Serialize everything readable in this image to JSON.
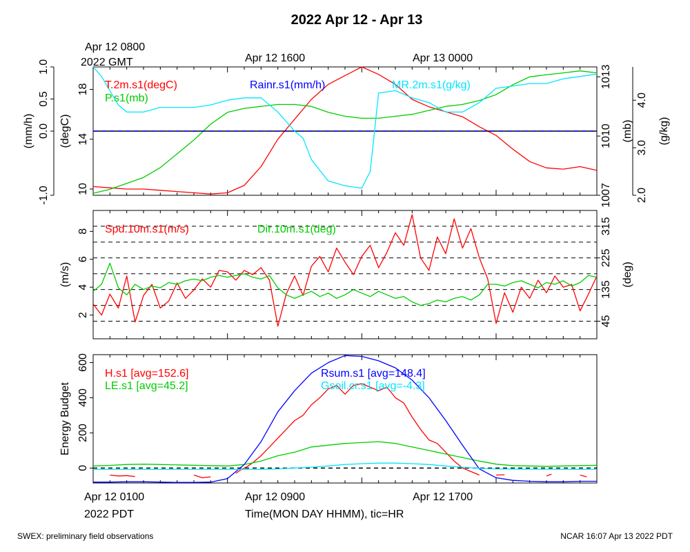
{
  "title": "2022 Apr 12 - Apr 13",
  "top_time_labels": [
    "Apr 12 0800",
    "2022 GMT",
    "Apr 12 1600",
    "Apr 13 0000"
  ],
  "bottom_time_labels": [
    "Apr 12 0100",
    "2022 PDT",
    "Apr 12 0900",
    "Apr 12 1700"
  ],
  "x_axis_label": "Time(MON DAY HHMM), tic=HR",
  "footer_left": "SWEX: preliminary field observations",
  "footer_right": "NCAR 16:07 Apr 13 2022 PDT",
  "colors": {
    "red": "#ff0000",
    "green": "#00cc00",
    "blue": "#0000ff",
    "cyan": "#00e5ff",
    "black": "#000000"
  },
  "chart_data": [
    {
      "type": "line",
      "panel": "meteorology",
      "x_unit": "hour since Apr 12 0100 PDT",
      "x_range": [
        0,
        30
      ],
      "left_axes": [
        {
          "label": "(mm/h)",
          "range": [
            -1.0,
            1.0
          ],
          "ticks": [
            "-1.0",
            "0.0",
            "0.5",
            "1.0"
          ],
          "tick_values": [
            -1.0,
            0.0,
            0.5,
            1.0
          ]
        },
        {
          "label": "(degC)",
          "range": [
            9.5,
            19.8
          ],
          "ticks": [
            "10",
            "14",
            "18"
          ],
          "tick_values": [
            10,
            14,
            18
          ]
        }
      ],
      "right_axes": [
        {
          "label": "(mb)",
          "range": [
            1007,
            1013.5
          ],
          "ticks": [
            "1007",
            "1010",
            "1013"
          ],
          "tick_values": [
            1007,
            1010,
            1013
          ]
        },
        {
          "label": "(g/kg)",
          "range": [
            2.0,
            4.7
          ],
          "ticks": [
            "2.0",
            "3.0",
            "4.0"
          ],
          "tick_values": [
            2.0,
            3.0,
            4.0
          ]
        }
      ],
      "legend": [
        "T.2m.s1(degC)",
        "P.s1(mb)",
        "Rainr.s1(mm/h)",
        "MR.2m.s1(g/kg)"
      ],
      "series": [
        {
          "name": "T.2m.s1(degC)",
          "color": "red",
          "axis": "degC",
          "x": [
            0,
            1,
            2,
            3,
            4,
            5,
            6,
            7,
            8,
            9,
            10,
            11,
            12,
            13,
            14,
            15,
            16,
            17,
            18,
            19,
            20,
            21,
            22,
            23,
            24,
            25,
            26,
            27,
            28,
            29,
            30
          ],
          "values": [
            10.2,
            10.1,
            10.0,
            10.0,
            9.9,
            9.8,
            9.7,
            9.6,
            9.7,
            10.3,
            11.8,
            14.0,
            15.6,
            17.2,
            18.4,
            19.1,
            19.8,
            19.2,
            18.4,
            17.2,
            16.6,
            16.2,
            15.8,
            15.0,
            14.3,
            13.2,
            12.2,
            11.7,
            11.6,
            11.8,
            11.5
          ]
        },
        {
          "name": "P.s1(mb)",
          "color": "green",
          "axis": "mb",
          "x": [
            0,
            1,
            2,
            3,
            4,
            5,
            6,
            7,
            8,
            9,
            10,
            11,
            12,
            13,
            14,
            15,
            16,
            17,
            18,
            19,
            20,
            21,
            22,
            23,
            24,
            25,
            26,
            27,
            28,
            29,
            30
          ],
          "values": [
            1007.1,
            1007.3,
            1007.6,
            1007.9,
            1008.4,
            1009.1,
            1009.8,
            1010.6,
            1011.2,
            1011.4,
            1011.5,
            1011.6,
            1011.6,
            1011.5,
            1011.2,
            1011.0,
            1010.9,
            1010.9,
            1011.0,
            1011.1,
            1011.3,
            1011.5,
            1011.6,
            1011.8,
            1012.1,
            1012.6,
            1013.0,
            1013.1,
            1013.2,
            1013.3,
            1013.2
          ]
        },
        {
          "name": "Rainr.s1(mm/h)",
          "color": "blue",
          "axis": "mm/h",
          "x": [
            0,
            30
          ],
          "values": [
            0.0,
            0.0
          ]
        },
        {
          "name": "MR.2m.s1(g/kg)",
          "color": "cyan",
          "axis": "g/kg",
          "x": [
            0,
            0.5,
            1,
            1.5,
            2,
            3,
            4,
            5,
            6,
            7,
            8,
            9,
            10,
            11,
            12,
            12.5,
            13,
            14,
            15,
            16,
            16.5,
            17,
            18,
            19,
            20,
            21,
            22,
            23,
            24,
            25,
            26,
            27,
            28,
            29,
            30
          ],
          "values": [
            4.7,
            4.5,
            4.2,
            3.9,
            3.75,
            3.75,
            3.85,
            3.85,
            3.85,
            3.9,
            4.0,
            4.05,
            4.05,
            3.75,
            3.35,
            3.2,
            2.75,
            2.3,
            2.2,
            2.15,
            2.5,
            4.15,
            4.2,
            4.05,
            3.95,
            3.75,
            3.75,
            3.95,
            4.25,
            4.3,
            4.35,
            4.35,
            4.45,
            4.5,
            4.55
          ]
        }
      ]
    },
    {
      "type": "line",
      "panel": "wind",
      "x_unit": "hour since Apr 12 0100 PDT",
      "x_range": [
        0,
        30
      ],
      "left_axis": {
        "label": "(m/s)",
        "range": [
          0.3,
          9.5
        ],
        "ticks": [
          "2",
          "4",
          "6",
          "8"
        ],
        "tick_values": [
          2,
          4,
          6,
          8
        ]
      },
      "right_axis": {
        "label": "(deg)",
        "range": [
          -5,
          360
        ],
        "ticks": [
          "45",
          "135",
          "225",
          "315"
        ],
        "tick_values": [
          45,
          135,
          225,
          315
        ]
      },
      "reference_lines_deg": [
        45,
        90,
        135,
        180,
        225,
        270,
        315,
        360
      ],
      "legend": [
        "Spd.10m.s1(m/s)",
        "Dir.10m.s1(deg)"
      ],
      "series": [
        {
          "name": "Spd.10m.s1(m/s)",
          "color": "red",
          "axis": "m/s",
          "x": [
            0,
            0.5,
            1,
            1.5,
            2,
            2.5,
            3,
            3.5,
            4,
            4.5,
            5,
            5.5,
            6,
            6.5,
            7,
            7.5,
            8,
            8.5,
            9,
            9.5,
            10,
            10.5,
            11,
            11.5,
            12,
            12.5,
            13,
            13.5,
            14,
            14.5,
            15,
            15.5,
            16,
            16.5,
            17,
            17.5,
            18,
            18.5,
            19,
            19.5,
            20,
            20.5,
            21,
            21.5,
            22,
            22.5,
            23,
            23.5,
            24,
            24.5,
            25,
            25.5,
            26,
            26.5,
            27,
            27.5,
            28,
            28.5,
            29,
            29.5,
            30
          ],
          "values": [
            2.8,
            2.0,
            3.5,
            2.5,
            4.8,
            1.5,
            3.4,
            4.2,
            2.5,
            3.0,
            4.3,
            3.2,
            3.8,
            4.6,
            4.0,
            5.2,
            5.1,
            4.5,
            5.2,
            4.9,
            5.4,
            4.5,
            1.2,
            3.5,
            4.8,
            3.4,
            5.5,
            6.2,
            5.1,
            6.8,
            5.8,
            4.9,
            6.2,
            7.0,
            5.4,
            6.5,
            7.9,
            7.0,
            9.2,
            6.1,
            5.2,
            7.6,
            6.4,
            8.9,
            6.8,
            8.2,
            6.1,
            4.6,
            1.4,
            3.6,
            2.2,
            4.0,
            3.2,
            4.5,
            3.6,
            4.8,
            4.0,
            4.2,
            2.3,
            3.5,
            4.8
          ]
        },
        {
          "name": "Dir.10m.s1(deg)",
          "color": "green",
          "axis": "deg",
          "x": [
            0,
            0.5,
            1,
            1.5,
            2,
            2.5,
            3,
            3.5,
            4,
            4.5,
            5,
            5.5,
            6,
            6.5,
            7,
            7.5,
            8,
            8.5,
            9,
            9.5,
            10,
            10.5,
            11,
            11.5,
            12,
            12.5,
            13,
            13.5,
            14,
            14.5,
            15,
            15.5,
            16,
            16.5,
            17,
            17.5,
            18,
            18.5,
            19,
            19.5,
            20,
            20.5,
            21,
            21.5,
            22,
            22.5,
            23,
            23.5,
            24,
            24.5,
            25,
            25.5,
            26,
            26.5,
            27,
            27.5,
            28,
            28.5,
            29,
            29.5,
            30
          ],
          "values": [
            130,
            150,
            210,
            140,
            120,
            150,
            135,
            145,
            140,
            155,
            150,
            160,
            165,
            160,
            170,
            175,
            170,
            175,
            180,
            170,
            165,
            175,
            140,
            120,
            110,
            120,
            130,
            115,
            125,
            110,
            120,
            135,
            125,
            115,
            130,
            120,
            110,
            115,
            100,
            90,
            95,
            105,
            100,
            110,
            115,
            105,
            120,
            150,
            150,
            145,
            155,
            160,
            150,
            140,
            155,
            150,
            160,
            145,
            155,
            175,
            170
          ]
        }
      ]
    },
    {
      "type": "line",
      "panel": "energy",
      "x_unit": "hour since Apr 12 0100 PDT",
      "x_range": [
        0,
        30
      ],
      "left_axis": {
        "label": "Energy Budget",
        "range": [
          -85,
          645
        ],
        "ticks": [
          "0",
          "200",
          "400",
          "600"
        ],
        "tick_values": [
          0,
          200,
          400,
          600
        ]
      },
      "reference_line": 0,
      "legend": [
        "H.s1 [avg=152.6]",
        "LE.s1 [avg=45.2]",
        "Rsum.s1 [avg=148.4]",
        "Gsoil.cr.s1 [avg=-4.3]"
      ],
      "series": [
        {
          "name": "H.s1 [avg=152.6]",
          "color": "red",
          "segments": [
            {
              "x": [
                1,
                1.5,
                2,
                2.5
              ],
              "values": [
                -40,
                -45,
                -43,
                -48
              ]
            },
            {
              "x": [
                6,
                6.5,
                7
              ],
              "values": [
                -40,
                -55,
                -50
              ]
            },
            {
              "x": [
                8.5,
                8.8,
                9.2,
                9.5,
                10,
                10.5,
                11,
                11.5,
                12,
                12.5,
                13,
                13.5,
                14,
                14.5,
                15,
                15.5,
                16,
                16.5,
                17,
                17.5,
                18,
                18.5,
                19,
                19.5,
                20,
                20.5,
                21,
                21.5,
                22,
                22.5,
                23
              ],
              "values": [
                -30,
                -10,
                10,
                30,
                70,
                120,
                170,
                220,
                270,
                300,
                360,
                400,
                450,
                470,
                420,
                470,
                480,
                460,
                440,
                460,
                400,
                370,
                290,
                220,
                160,
                140,
                90,
                40,
                0,
                -20,
                -40
              ]
            },
            {
              "x": [
                24,
                24.5
              ],
              "values": [
                -40,
                -38
              ]
            },
            {
              "x": [
                27,
                27.3
              ],
              "values": [
                -45,
                -35
              ]
            },
            {
              "x": [
                29,
                29.4
              ],
              "values": [
                -40,
                -50
              ]
            }
          ]
        },
        {
          "name": "LE.s1 [avg=45.2]",
          "color": "green",
          "x": [
            0,
            1,
            2,
            3,
            4,
            5,
            6,
            7,
            8,
            9,
            10,
            11,
            12,
            13,
            14,
            15,
            16,
            17,
            18,
            19,
            20,
            21,
            22,
            23,
            24,
            25,
            26,
            27,
            28,
            29,
            30
          ],
          "values": [
            12,
            15,
            20,
            22,
            20,
            18,
            16,
            14,
            12,
            20,
            40,
            70,
            90,
            120,
            130,
            140,
            145,
            150,
            140,
            120,
            100,
            80,
            60,
            40,
            22,
            14,
            12,
            10,
            12,
            14,
            16
          ]
        },
        {
          "name": "Rsum.s1 [avg=148.4]",
          "color": "blue",
          "x": [
            0,
            1,
            2,
            3,
            4,
            5,
            6,
            7,
            8,
            9,
            10,
            11,
            12,
            13,
            14,
            15,
            16,
            17,
            18,
            19,
            20,
            21,
            22,
            23,
            24,
            25,
            26,
            27,
            28,
            29,
            30
          ],
          "values": [
            -80,
            -80,
            -78,
            -78,
            -80,
            -82,
            -82,
            -80,
            -60,
            20,
            150,
            320,
            440,
            540,
            600,
            640,
            635,
            610,
            570,
            500,
            400,
            270,
            130,
            -5,
            -55,
            -70,
            -75,
            -78,
            -78,
            -75,
            -75
          ]
        },
        {
          "name": "Gsoil.cr.s1 [avg=-4.3]",
          "color": "cyan",
          "x": [
            0,
            2,
            4,
            6,
            8,
            10,
            11,
            12,
            13,
            14,
            15,
            16,
            17,
            18,
            19,
            20,
            21,
            22,
            23,
            24,
            26,
            28,
            30
          ],
          "values": [
            -8,
            -8,
            -8,
            -8,
            -8,
            -8,
            -5,
            0,
            5,
            12,
            20,
            25,
            28,
            28,
            25,
            20,
            12,
            5,
            -2,
            -5,
            -7,
            -8,
            -8
          ]
        }
      ]
    }
  ]
}
